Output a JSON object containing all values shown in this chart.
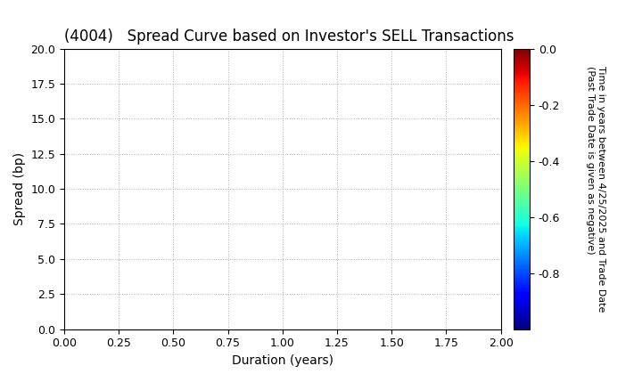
{
  "title": "(4004)   Spread Curve based on Investor's SELL Transactions",
  "xlabel": "Duration (years)",
  "ylabel": "Spread (bp)",
  "xlim": [
    0.0,
    2.0
  ],
  "ylim": [
    0.0,
    20.0
  ],
  "xticks": [
    0.0,
    0.25,
    0.5,
    0.75,
    1.0,
    1.25,
    1.5,
    1.75,
    2.0
  ],
  "yticks": [
    0.0,
    2.5,
    5.0,
    7.5,
    10.0,
    12.5,
    15.0,
    17.5,
    20.0
  ],
  "colorbar_vmin": -1.0,
  "colorbar_vmax": 0.0,
  "colorbar_ticks": [
    0.0,
    -0.2,
    -0.4,
    -0.6,
    -0.8
  ],
  "colorbar_label_line1": "Time in years between 4/25/2025 and Trade Date",
  "colorbar_label_line2": "(Past Trade Date is given as negative)",
  "colormap": "jet",
  "background_color": "#ffffff",
  "grid_color": "#b0b0b0",
  "title_fontsize": 12,
  "axis_label_fontsize": 10,
  "tick_fontsize": 9,
  "colorbar_label_fontsize": 8
}
